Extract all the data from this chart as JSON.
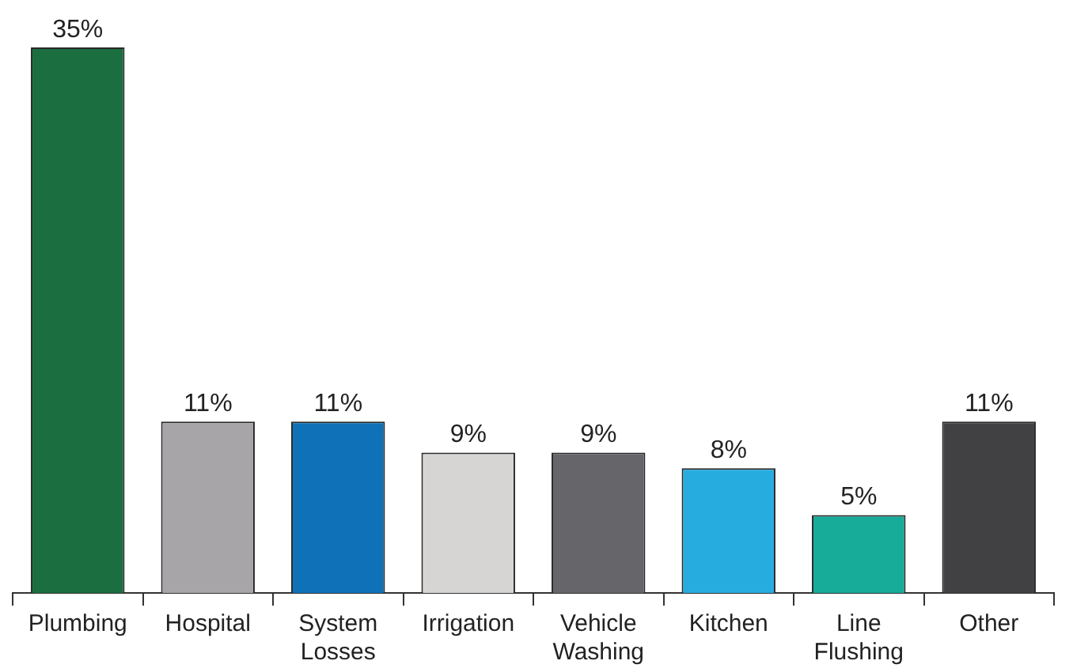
{
  "chart_data": {
    "type": "bar",
    "categories": [
      "Plumbing",
      "Hospital",
      "System Losses",
      "Irrigation",
      "Vehicle Washing",
      "Kitchen",
      "Line Flushing",
      "Other"
    ],
    "values": [
      35,
      11,
      11,
      9,
      9,
      8,
      5,
      11
    ],
    "colors": [
      "#1b6e3f",
      "#a7a5a8",
      "#0f72b9",
      "#d6d5d4",
      "#66656a",
      "#27ace0",
      "#17ab9a",
      "#414143"
    ],
    "value_labels": [
      "35%",
      "11%",
      "11%",
      "9%",
      "9%",
      "8%",
      "5%",
      "11%"
    ],
    "tick_labels": "x"
  }
}
